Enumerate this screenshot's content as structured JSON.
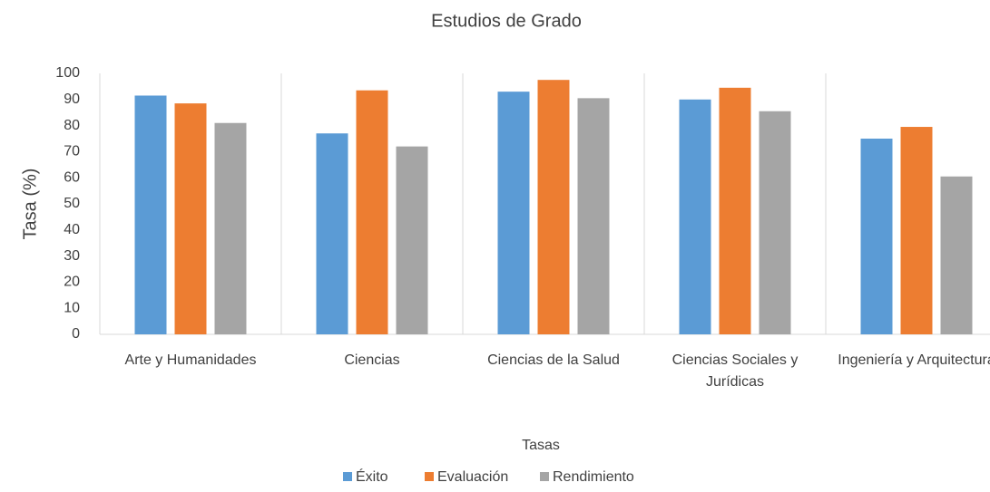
{
  "chart_data": {
    "type": "bar",
    "title": "Estudios de Grado",
    "y_label": "Tasa (%)",
    "x_label": "Tasas",
    "categories": [
      "Arte y Humanidades",
      "Ciencias",
      "Ciencias de la Salud",
      "Ciencias Sociales y Jurídicas",
      "Ingeniería y Arquitectura"
    ],
    "series": [
      {
        "name": "Éxito",
        "color": "#5b9bd5",
        "values": [
          91.5,
          77,
          93,
          90,
          75
        ]
      },
      {
        "name": "Evaluación",
        "color": "#ed7d31",
        "values": [
          88.5,
          93.5,
          97.5,
          94.5,
          79.5
        ]
      },
      {
        "name": "Rendimiento",
        "color": "#a5a5a5",
        "values": [
          81,
          72,
          90.5,
          85.5,
          60.5
        ]
      }
    ],
    "ylim": [
      0,
      100
    ],
    "yticks": [
      0,
      10,
      20,
      30,
      40,
      50,
      60,
      70,
      80,
      90,
      100
    ],
    "legend": "bottom"
  }
}
